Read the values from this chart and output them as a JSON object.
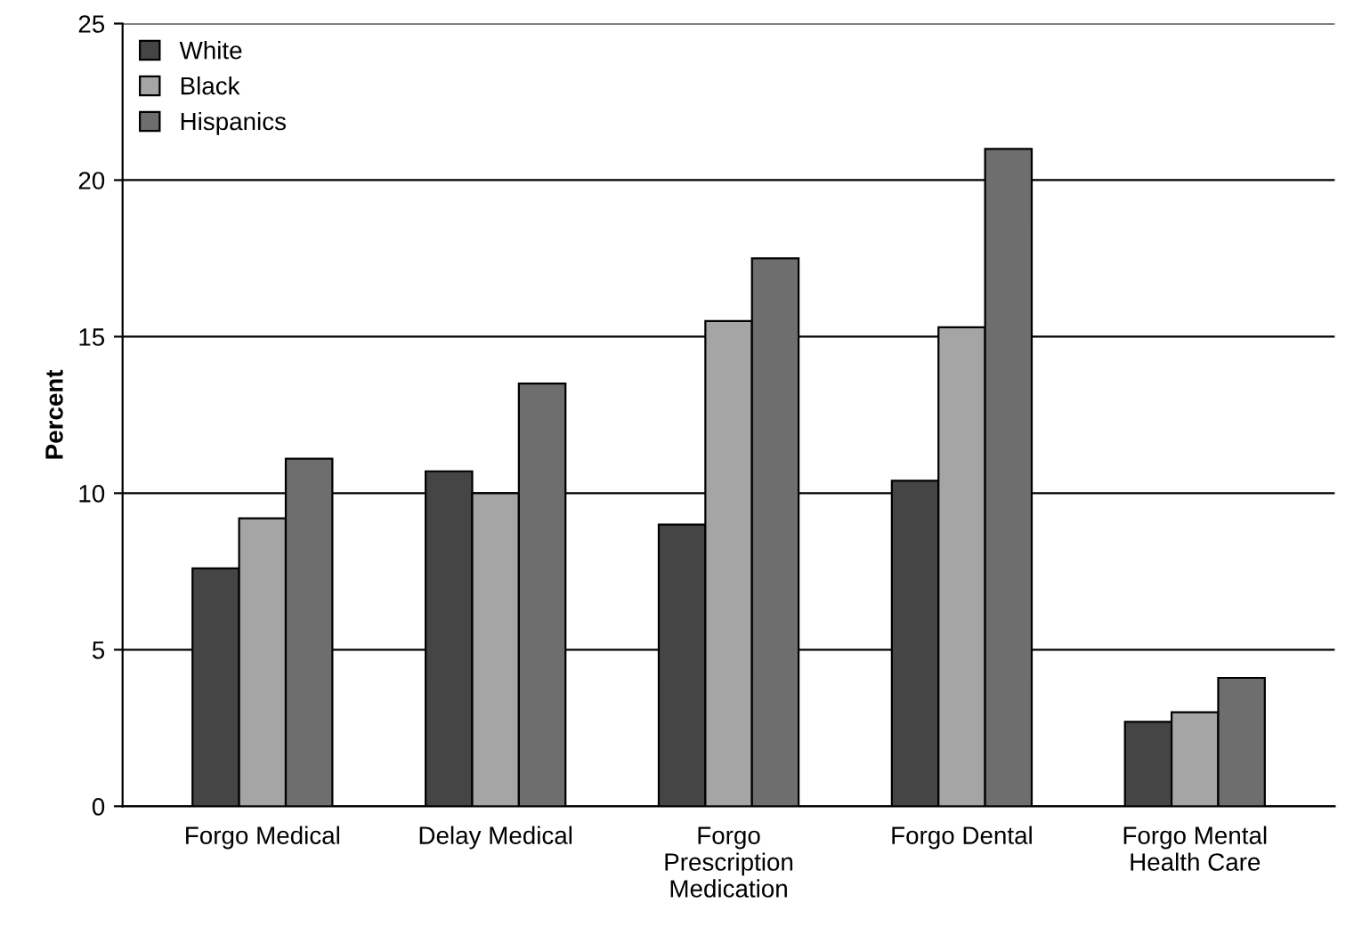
{
  "chart_data": {
    "type": "bar",
    "ylabel": "Percent",
    "categories": [
      "Forgo Medical",
      "Delay Medical",
      "Forgo\nPrescription\nMedication",
      "Forgo Dental",
      "Forgo Mental\nHealth Care"
    ],
    "series": [
      {
        "name": "White",
        "color": "#454545",
        "values": [
          7.6,
          10.7,
          9.0,
          10.4,
          2.7
        ]
      },
      {
        "name": "Black",
        "color": "#a5a5a5",
        "values": [
          9.2,
          10.0,
          15.5,
          15.3,
          3.0
        ]
      },
      {
        "name": "Hispanics",
        "color": "#6e6e6e",
        "values": [
          11.1,
          13.5,
          17.5,
          21.0,
          4.1
        ]
      }
    ],
    "ylim": [
      0,
      25
    ],
    "yticks": [
      0,
      5,
      10,
      15,
      20,
      25
    ],
    "grid": "y",
    "legend": "top left"
  }
}
